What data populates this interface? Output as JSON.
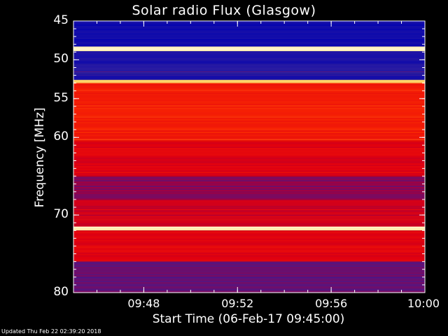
{
  "title": "Solar radio Flux (Glasgow)",
  "footer": "Updated Thu Feb 22 02:39:20 2018",
  "chart_data": {
    "type": "heatmap",
    "title": "Solar radio Flux (Glasgow)",
    "ylabel": "Frequency [MHz]",
    "xlabel": "Start Time (06-Feb-17 09:45:00)",
    "ylim": [
      45,
      80
    ],
    "y_inverted": true,
    "y_ticks": [
      "45",
      "50",
      "55",
      "60",
      "70",
      "80"
    ],
    "x_ticks": [
      "09:48",
      "09:52",
      "09:56",
      "10:00"
    ],
    "xlim": [
      "09:45",
      "10:00"
    ],
    "colormap": [
      "#0000b0",
      "#3020a0",
      "#a00040",
      "#e00010",
      "#ff3000",
      "#ffd060",
      "#ffffe0"
    ],
    "bands": [
      {
        "from": 45.0,
        "to": 48.3,
        "intensity": 0.05
      },
      {
        "from": 48.3,
        "to": 48.9,
        "intensity": 0.95
      },
      {
        "from": 48.9,
        "to": 50.6,
        "intensity": 0.08
      },
      {
        "from": 50.6,
        "to": 51.8,
        "intensity": 0.15
      },
      {
        "from": 51.8,
        "to": 52.6,
        "intensity": 0.1
      },
      {
        "from": 52.6,
        "to": 53.0,
        "intensity": 0.85
      },
      {
        "from": 53.0,
        "to": 60.5,
        "intensity": 0.6
      },
      {
        "from": 60.5,
        "to": 65.0,
        "intensity": 0.5
      },
      {
        "from": 65.0,
        "to": 68.0,
        "intensity": 0.3
      },
      {
        "from": 68.0,
        "to": 71.5,
        "intensity": 0.45
      },
      {
        "from": 71.5,
        "to": 72.0,
        "intensity": 0.95
      },
      {
        "from": 72.0,
        "to": 76.0,
        "intensity": 0.5
      },
      {
        "from": 76.0,
        "to": 80.0,
        "intensity": 0.25
      }
    ]
  }
}
